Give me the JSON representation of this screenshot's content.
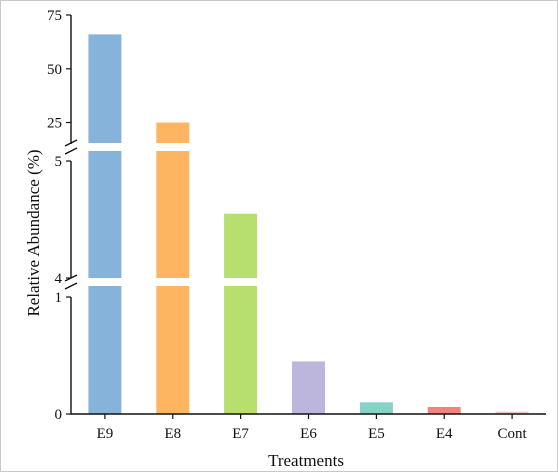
{
  "chart_data": {
    "type": "bar",
    "title": "",
    "xlabel": "Treatments",
    "ylabel": "Relative Abundance (%)",
    "categories": [
      "E9",
      "E8",
      "E7",
      "E6",
      "E5",
      "E4",
      "Cont"
    ],
    "values": [
      66,
      25,
      4.55,
      0.45,
      0.1,
      0.06,
      0.02
    ],
    "colors": [
      "#85b3d9",
      "#fdb562",
      "#b6df6e",
      "#bcb6dc",
      "#86d3c6",
      "#f4837b",
      "#f4c7c3"
    ],
    "y_axis": {
      "broken": true,
      "segments": [
        {
          "range": [
            0,
            1
          ],
          "ticks": [
            0,
            1
          ]
        },
        {
          "range": [
            4,
            5
          ],
          "ticks": [
            4,
            5
          ]
        },
        {
          "range": [
            15,
            75
          ],
          "ticks": [
            25,
            50,
            75
          ]
        }
      ]
    },
    "grid": false,
    "legend": "none"
  }
}
